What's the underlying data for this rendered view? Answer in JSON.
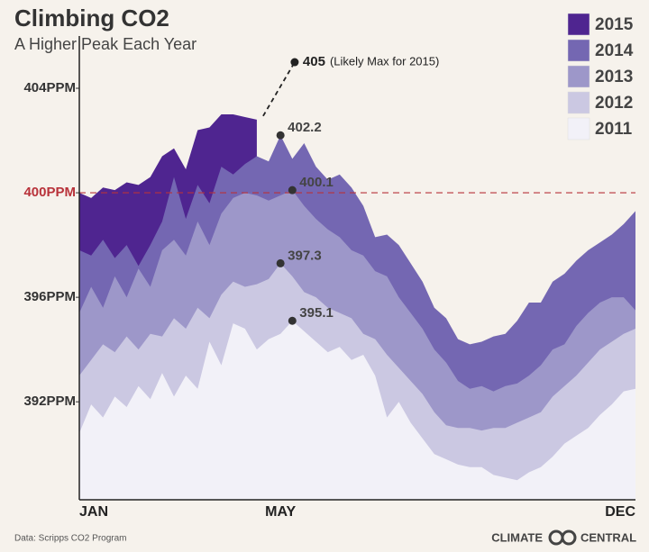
{
  "chart_data": {
    "type": "area",
    "title": "Climbing CO2",
    "subtitle": "A Higher Peak Each Year",
    "source": "Data: Scripps CO2 Program",
    "logo": {
      "left": "CLIMATE",
      "right": "CENTRAL"
    },
    "categories": [
      "JAN",
      null,
      null,
      null,
      null,
      null,
      null,
      null,
      null,
      null,
      null,
      null,
      null,
      null,
      null,
      null,
      null,
      "MAY",
      null,
      null,
      null,
      null,
      null,
      null,
      null,
      null,
      null,
      null,
      null,
      null,
      null,
      null,
      null,
      null,
      null,
      null,
      null,
      null,
      null,
      null,
      null,
      null,
      null,
      null,
      null,
      null,
      null,
      "DEC"
    ],
    "ylim": [
      388.25,
      406.0
    ],
    "yticks": [
      {
        "value": 392,
        "label": "392PPM"
      },
      {
        "value": 396,
        "label": "396PPM"
      },
      {
        "value": 400,
        "label": "400PPM"
      },
      {
        "value": 404,
        "label": "404PPM"
      }
    ],
    "reference_line": {
      "value": 400,
      "color": "#b8323a"
    },
    "legend": "top-right",
    "series": [
      {
        "name": "2015",
        "color": "#4f2590",
        "values": [
          400.0,
          399.8,
          400.2,
          400.1,
          400.4,
          400.3,
          400.6,
          401.4,
          401.7,
          400.9,
          402.4,
          402.5,
          403.0,
          403.0,
          402.9,
          402.8,
          null,
          null,
          null,
          null,
          null,
          null,
          null,
          null,
          null,
          null,
          null,
          null,
          null,
          null,
          null,
          null,
          null,
          null,
          null,
          null,
          null,
          null,
          null,
          null,
          null,
          null,
          null,
          null,
          null,
          null,
          null,
          null
        ]
      },
      {
        "name": "2014",
        "color": "#7467b2",
        "peak": 402.2,
        "values": [
          397.8,
          397.6,
          398.2,
          397.5,
          398.0,
          397.2,
          398.0,
          398.9,
          400.6,
          399.0,
          400.3,
          399.6,
          401.0,
          400.7,
          401.1,
          401.4,
          401.2,
          402.2,
          401.3,
          401.9,
          401.0,
          400.5,
          400.7,
          400.2,
          399.5,
          398.3,
          398.4,
          398.0,
          397.3,
          396.6,
          395.6,
          395.2,
          394.4,
          394.2,
          394.3,
          394.5,
          394.6,
          395.1,
          395.8,
          395.8,
          396.6,
          396.9,
          397.4,
          397.8,
          398.1,
          398.4,
          398.8,
          399.3
        ]
      },
      {
        "name": "2013",
        "color": "#9d97c9",
        "peak": 400.1,
        "values": [
          395.4,
          396.4,
          395.6,
          396.8,
          396.0,
          397.1,
          396.4,
          397.8,
          398.2,
          397.6,
          398.9,
          398.0,
          399.2,
          399.8,
          400.0,
          399.9,
          399.7,
          399.9,
          400.1,
          399.5,
          399.0,
          398.6,
          398.3,
          397.8,
          397.6,
          397.0,
          396.8,
          396.0,
          395.4,
          394.8,
          394.0,
          393.5,
          392.8,
          392.5,
          392.6,
          392.4,
          392.6,
          392.7,
          393.0,
          393.4,
          394.0,
          394.2,
          394.9,
          395.4,
          395.8,
          396.0,
          396.0,
          395.5
        ]
      },
      {
        "name": "2012",
        "color": "#cbc8e2",
        "peak": 397.3,
        "values": [
          393.0,
          393.6,
          394.2,
          393.9,
          394.5,
          394.0,
          394.6,
          394.5,
          395.2,
          394.8,
          395.6,
          395.2,
          396.1,
          396.6,
          396.4,
          396.5,
          396.7,
          397.3,
          396.8,
          396.2,
          396.0,
          395.6,
          395.4,
          395.2,
          394.6,
          394.4,
          393.8,
          393.3,
          392.8,
          392.3,
          391.6,
          391.1,
          391.0,
          391.0,
          390.9,
          391.0,
          391.0,
          391.2,
          391.4,
          391.6,
          392.2,
          392.6,
          393.0,
          393.5,
          394.0,
          394.3,
          394.6,
          394.8
        ]
      },
      {
        "name": "2011",
        "color": "#f2f1f8",
        "peak": 395.1,
        "values": [
          390.8,
          391.9,
          391.4,
          392.2,
          391.8,
          392.6,
          392.1,
          393.1,
          392.2,
          393.0,
          392.5,
          394.3,
          393.4,
          395.0,
          394.8,
          394.0,
          394.4,
          394.6,
          395.1,
          394.7,
          394.3,
          393.9,
          394.1,
          393.6,
          393.8,
          393.0,
          391.4,
          392.0,
          391.2,
          390.6,
          390.0,
          389.8,
          389.6,
          389.5,
          389.5,
          389.2,
          389.1,
          389.0,
          389.3,
          389.5,
          389.9,
          390.4,
          390.7,
          391.0,
          391.5,
          391.9,
          392.4,
          392.5
        ]
      }
    ],
    "annotation": {
      "value": 405,
      "text": "(Likely Max for 2015)"
    }
  }
}
